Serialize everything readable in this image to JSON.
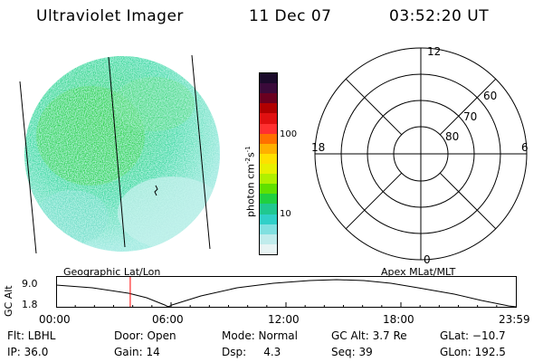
{
  "header": {
    "instrument": "Ultraviolet Imager",
    "date": "11 Dec 07",
    "time": "03:52:20 UT"
  },
  "colorbar": {
    "unit_label": "photon cm",
    "unit_exp1": "-2",
    "unit_s": "s",
    "unit_exp2": "-1",
    "tick_100": "100",
    "tick_10": "10",
    "colors": [
      "#1a0a2a",
      "#3a0a3a",
      "#6a0020",
      "#b00000",
      "#e01010",
      "#ff3030",
      "#ff7000",
      "#ffb000",
      "#ffe000",
      "#e8f000",
      "#b0f000",
      "#60e000",
      "#20d040",
      "#20c890",
      "#30d0c8",
      "#80e0e0",
      "#c0ecec",
      "#e8f4f4"
    ]
  },
  "polar": {
    "mlt_labels": {
      "top": "12",
      "left": "18",
      "right": "6",
      "bottom": "0"
    },
    "lat_labels": [
      "60",
      "70",
      "80"
    ]
  },
  "timeline": {
    "y_title": "GC Alt",
    "y_max": "9.0",
    "y_min": "1.8",
    "left_label": "Geographic Lat/Lon",
    "right_label": "Apex MLat/MLT",
    "ticks": [
      "00:00",
      "06:00",
      "12:00",
      "18:00",
      "23:59"
    ],
    "current_time_hours": 3.87
  },
  "info": {
    "flt": "Flt: LBHL",
    "ip": "IP: 36.0",
    "door": "Door: Open",
    "gain": "Gain: 14",
    "mode": "Mode: Normal",
    "dsp": "Dsp:     4.3",
    "gcalt": "GC Alt: 3.7 Re",
    "seq": "Seq: 39",
    "glat": "GLat: −10.7",
    "glon": "GLon: 192.5"
  }
}
